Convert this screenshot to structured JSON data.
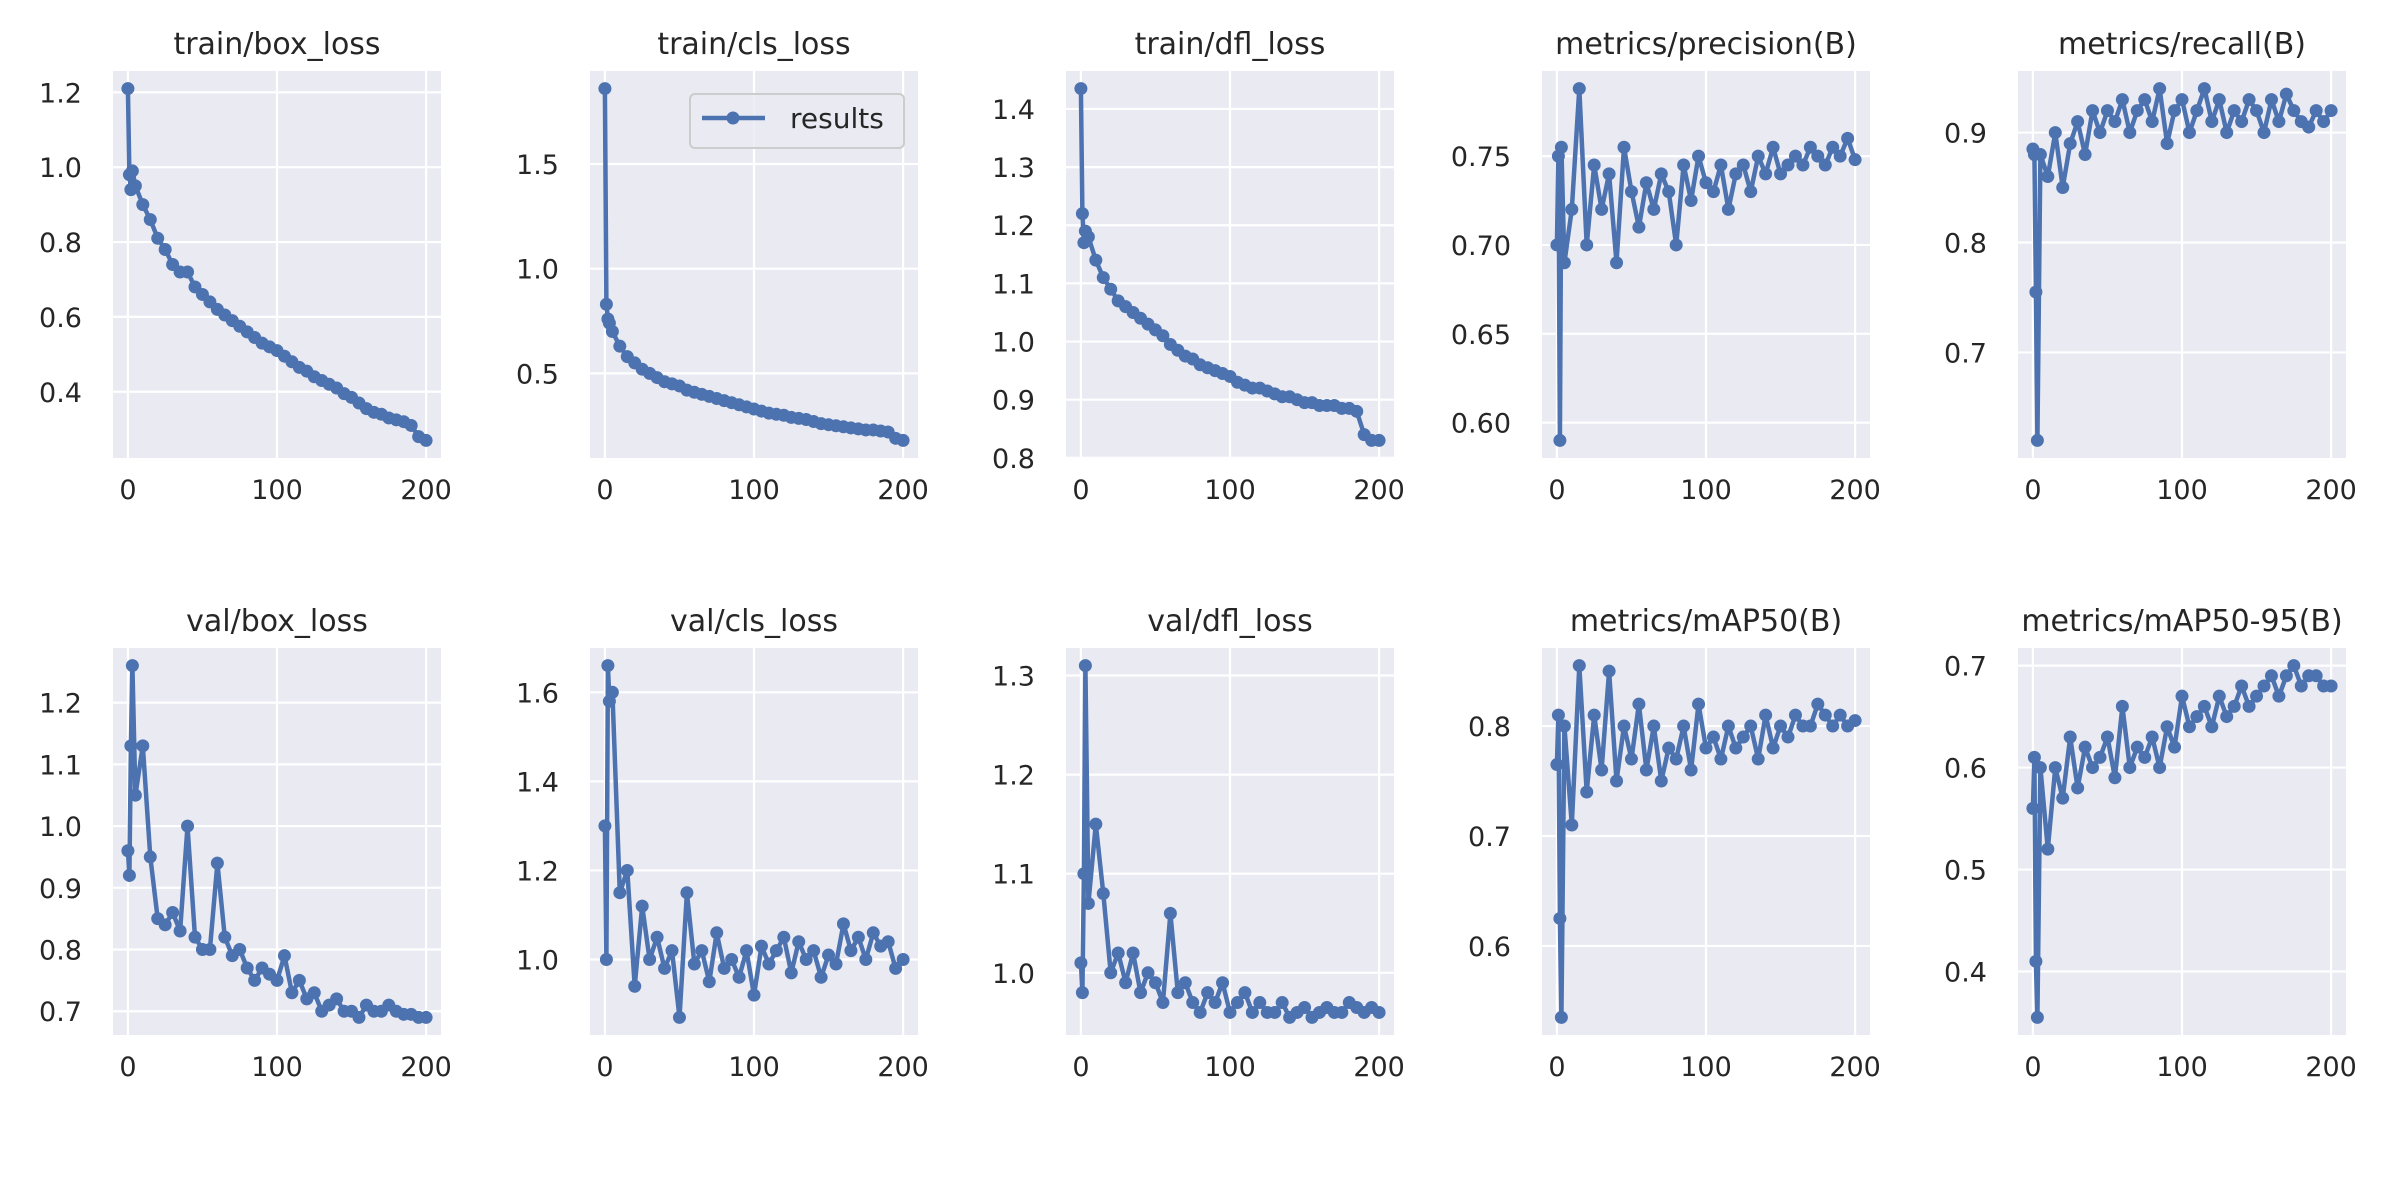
{
  "style": {
    "background": "#EAEAF2",
    "grid": "#FFFFFF",
    "line_color": "#4C72B0",
    "text": "#262626"
  },
  "legend": {
    "label": "results",
    "placement": "upper-right",
    "panel": 1
  },
  "chart_data": {
    "type": "line",
    "layout": "2x5 subplot grid",
    "x": [
      0,
      1,
      2,
      3,
      5,
      10,
      15,
      20,
      25,
      30,
      35,
      40,
      45,
      50,
      55,
      60,
      65,
      70,
      75,
      80,
      85,
      90,
      95,
      100,
      105,
      110,
      115,
      120,
      125,
      130,
      135,
      140,
      145,
      150,
      155,
      160,
      165,
      170,
      175,
      180,
      185,
      190,
      195,
      200
    ],
    "xlim": [
      -10,
      210
    ],
    "xticks": [
      0,
      100,
      200
    ],
    "grid": true,
    "panels": [
      {
        "title": "train/box_loss",
        "yticks": [
          "0.4",
          "0.6",
          "0.8",
          "1.0",
          "1.2"
        ],
        "values": [
          1.21,
          0.98,
          0.94,
          0.99,
          0.95,
          0.9,
          0.86,
          0.81,
          0.78,
          0.74,
          0.72,
          0.72,
          0.68,
          0.66,
          0.64,
          0.62,
          0.605,
          0.59,
          0.575,
          0.56,
          0.545,
          0.53,
          0.52,
          0.51,
          0.495,
          0.48,
          0.465,
          0.455,
          0.44,
          0.43,
          0.42,
          0.41,
          0.395,
          0.385,
          0.37,
          0.355,
          0.345,
          0.34,
          0.33,
          0.325,
          0.32,
          0.31,
          0.28,
          0.27
        ]
      },
      {
        "title": "train/cls_loss",
        "yticks": [
          "0.5",
          "1.0",
          "1.5"
        ],
        "values": [
          1.86,
          0.83,
          0.76,
          0.74,
          0.7,
          0.63,
          0.58,
          0.55,
          0.52,
          0.5,
          0.48,
          0.46,
          0.45,
          0.44,
          0.42,
          0.41,
          0.4,
          0.39,
          0.38,
          0.37,
          0.36,
          0.35,
          0.34,
          0.33,
          0.32,
          0.31,
          0.305,
          0.3,
          0.29,
          0.285,
          0.28,
          0.27,
          0.26,
          0.255,
          0.25,
          0.245,
          0.24,
          0.235,
          0.23,
          0.23,
          0.225,
          0.22,
          0.19,
          0.18
        ]
      },
      {
        "title": "train/dfl_loss",
        "yticks": [
          "0.8",
          "0.9",
          "1.0",
          "1.1",
          "1.2",
          "1.3",
          "1.4"
        ],
        "values": [
          1.435,
          1.22,
          1.17,
          1.19,
          1.18,
          1.14,
          1.11,
          1.09,
          1.07,
          1.06,
          1.05,
          1.04,
          1.03,
          1.02,
          1.01,
          0.995,
          0.985,
          0.975,
          0.97,
          0.96,
          0.955,
          0.95,
          0.945,
          0.94,
          0.93,
          0.925,
          0.92,
          0.92,
          0.915,
          0.91,
          0.905,
          0.905,
          0.9,
          0.895,
          0.895,
          0.89,
          0.89,
          0.89,
          0.885,
          0.885,
          0.88,
          0.84,
          0.83,
          0.83
        ]
      },
      {
        "title": "metrics/precision(B)",
        "yticks": [
          "0.60",
          "0.65",
          "0.70",
          "0.75"
        ],
        "values": [
          0.7,
          0.75,
          0.59,
          0.755,
          0.69,
          0.72,
          0.788,
          0.7,
          0.745,
          0.72,
          0.74,
          0.69,
          0.755,
          0.73,
          0.71,
          0.735,
          0.72,
          0.74,
          0.73,
          0.7,
          0.745,
          0.725,
          0.75,
          0.735,
          0.73,
          0.745,
          0.72,
          0.74,
          0.745,
          0.73,
          0.75,
          0.74,
          0.755,
          0.74,
          0.745,
          0.75,
          0.745,
          0.755,
          0.75,
          0.745,
          0.755,
          0.75,
          0.76,
          0.748
        ]
      },
      {
        "title": "metrics/recall(B)",
        "yticks": [
          "0.7",
          "0.8",
          "0.9"
        ],
        "values": [
          0.885,
          0.88,
          0.755,
          0.62,
          0.88,
          0.86,
          0.9,
          0.85,
          0.89,
          0.91,
          0.88,
          0.92,
          0.9,
          0.92,
          0.91,
          0.93,
          0.9,
          0.92,
          0.93,
          0.91,
          0.94,
          0.89,
          0.92,
          0.93,
          0.9,
          0.92,
          0.94,
          0.91,
          0.93,
          0.9,
          0.92,
          0.91,
          0.93,
          0.92,
          0.9,
          0.93,
          0.91,
          0.935,
          0.92,
          0.91,
          0.905,
          0.92,
          0.91,
          0.92
        ]
      },
      {
        "title": "val/box_loss",
        "yticks": [
          "0.7",
          "0.8",
          "0.9",
          "1.0",
          "1.1",
          "1.2"
        ],
        "values": [
          0.96,
          0.92,
          1.13,
          1.26,
          1.05,
          1.13,
          0.95,
          0.85,
          0.84,
          0.86,
          0.83,
          1.0,
          0.82,
          0.8,
          0.8,
          0.94,
          0.82,
          0.79,
          0.8,
          0.77,
          0.75,
          0.77,
          0.76,
          0.75,
          0.79,
          0.73,
          0.75,
          0.72,
          0.73,
          0.7,
          0.71,
          0.72,
          0.7,
          0.7,
          0.69,
          0.71,
          0.7,
          0.7,
          0.71,
          0.7,
          0.695,
          0.695,
          0.69,
          0.69
        ]
      },
      {
        "title": "val/cls_loss",
        "yticks": [
          "1.0",
          "1.2",
          "1.4",
          "1.6"
        ],
        "values": [
          1.3,
          1.0,
          1.66,
          1.58,
          1.6,
          1.15,
          1.2,
          0.94,
          1.12,
          1.0,
          1.05,
          0.98,
          1.02,
          0.87,
          1.15,
          0.99,
          1.02,
          0.95,
          1.06,
          0.98,
          1.0,
          0.96,
          1.02,
          0.92,
          1.03,
          0.99,
          1.02,
          1.05,
          0.97,
          1.04,
          1.0,
          1.02,
          0.96,
          1.01,
          0.99,
          1.08,
          1.02,
          1.05,
          1.0,
          1.06,
          1.03,
          1.04,
          0.98,
          1.0
        ]
      },
      {
        "title": "val/dfl_loss",
        "yticks": [
          "1.0",
          "1.1",
          "1.2",
          "1.3"
        ],
        "values": [
          1.01,
          0.98,
          1.1,
          1.31,
          1.07,
          1.15,
          1.08,
          1.0,
          1.02,
          0.99,
          1.02,
          0.98,
          1.0,
          0.99,
          0.97,
          1.06,
          0.98,
          0.99,
          0.97,
          0.96,
          0.98,
          0.97,
          0.99,
          0.96,
          0.97,
          0.98,
          0.96,
          0.97,
          0.96,
          0.96,
          0.97,
          0.955,
          0.96,
          0.965,
          0.955,
          0.96,
          0.965,
          0.96,
          0.96,
          0.97,
          0.965,
          0.96,
          0.965,
          0.96
        ]
      },
      {
        "title": "metrics/mAP50(B)",
        "yticks": [
          "0.6",
          "0.7",
          "0.8"
        ],
        "values": [
          0.765,
          0.81,
          0.625,
          0.535,
          0.8,
          0.71,
          0.855,
          0.74,
          0.81,
          0.76,
          0.85,
          0.75,
          0.8,
          0.77,
          0.82,
          0.76,
          0.8,
          0.75,
          0.78,
          0.77,
          0.8,
          0.76,
          0.82,
          0.78,
          0.79,
          0.77,
          0.8,
          0.78,
          0.79,
          0.8,
          0.77,
          0.81,
          0.78,
          0.8,
          0.79,
          0.81,
          0.8,
          0.8,
          0.82,
          0.81,
          0.8,
          0.81,
          0.8,
          0.805
        ]
      },
      {
        "title": "metrics/mAP50-95(B)",
        "yticks": [
          "0.4",
          "0.5",
          "0.6",
          "0.7"
        ],
        "values": [
          0.56,
          0.61,
          0.41,
          0.355,
          0.6,
          0.52,
          0.6,
          0.57,
          0.63,
          0.58,
          0.62,
          0.6,
          0.61,
          0.63,
          0.59,
          0.66,
          0.6,
          0.62,
          0.61,
          0.63,
          0.6,
          0.64,
          0.62,
          0.67,
          0.64,
          0.65,
          0.66,
          0.64,
          0.67,
          0.65,
          0.66,
          0.68,
          0.66,
          0.67,
          0.68,
          0.69,
          0.67,
          0.69,
          0.7,
          0.68,
          0.69,
          0.69,
          0.68,
          0.68
        ]
      }
    ]
  }
}
